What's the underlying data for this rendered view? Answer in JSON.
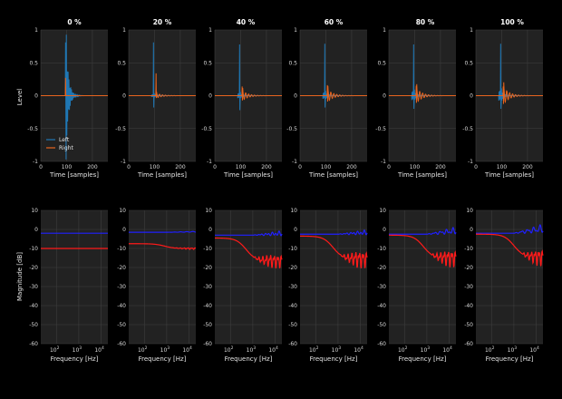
{
  "figure": {
    "background": "#000000",
    "panel_background": "#222222",
    "grid_color": "#3e3e3e"
  },
  "chart_data": [
    {
      "type": "line",
      "row": "impulse-response",
      "columns": [
        "0 %",
        "20 %",
        "40 %",
        "60 %",
        "80 %",
        "100 %"
      ],
      "xlabel": "Time [samples]",
      "ylabel": "Level",
      "xlim": [
        0,
        260
      ],
      "ylim": [
        -1,
        1
      ],
      "xticks": [
        0,
        100,
        200
      ],
      "yticks": [
        -1,
        -0.5,
        0,
        0.5,
        1
      ],
      "ytick_labels": [
        "-1",
        "-0.5",
        "0",
        "0.5",
        "1"
      ],
      "legend": {
        "placement": "bottom-left",
        "entries": [
          "Left",
          "Right"
        ]
      },
      "series_colors": {
        "Left": "#1f77b4",
        "Right": "#e8641e"
      },
      "impulse_sample": 96,
      "panels": [
        {
          "left": {
            "peak": 0.81,
            "neg": 0.0,
            "decay": 1.0,
            "ring": 0.0
          },
          "right": {
            "delay": 0,
            "peak": 0.27,
            "ring": 0.0
          }
        },
        {
          "left": {
            "peak": 0.81,
            "neg": -0.18,
            "decay": 0.04,
            "ring": 0.02
          },
          "right": {
            "delay": 10,
            "peak": 0.34,
            "ring": 0.04
          }
        },
        {
          "left": {
            "peak": 0.78,
            "neg": -0.22,
            "decay": 0.06,
            "ring": 0.04
          },
          "right": {
            "delay": 10,
            "peak": 0.14,
            "ring": 0.08
          }
        },
        {
          "left": {
            "peak": 0.79,
            "neg": -0.18,
            "decay": 0.08,
            "ring": 0.05
          },
          "right": {
            "delay": 10,
            "peak": 0.16,
            "ring": 0.1
          }
        },
        {
          "left": {
            "peak": 0.78,
            "neg": -0.2,
            "decay": 0.1,
            "ring": 0.07
          },
          "right": {
            "delay": 10,
            "peak": 0.15,
            "ring": 0.12
          }
        },
        {
          "left": {
            "peak": 0.79,
            "neg": -0.2,
            "decay": 0.12,
            "ring": 0.08
          },
          "right": {
            "delay": 10,
            "peak": 0.14,
            "ring": 0.14
          }
        }
      ]
    },
    {
      "type": "line",
      "row": "magnitude-response",
      "xlabel": "Frequency [Hz]",
      "ylabel": "Magnitude [dB]",
      "xscale": "log",
      "xlim": [
        20,
        20000
      ],
      "ylim": [
        -60,
        10
      ],
      "xticks": [
        100,
        1000,
        10000
      ],
      "xtick_labels": [
        {
          "base": "10",
          "exp": "2"
        },
        {
          "base": "10",
          "exp": "3"
        },
        {
          "base": "10",
          "exp": "4"
        }
      ],
      "yticks": [
        -60,
        -50,
        -40,
        -30,
        -20,
        -10,
        0,
        10
      ],
      "ytick_labels": [
        "-60",
        "-50",
        "-40",
        "-30",
        "-20",
        "-10",
        "0",
        "10"
      ],
      "series_colors": {
        "Left": "#2020ff",
        "Right": "#ff1a1a"
      },
      "panels": [
        {
          "left_level": -2,
          "left_rise": 0,
          "right_level": -10,
          "right_knee_hz": 0,
          "right_drop": 0,
          "right_ripple": 0
        },
        {
          "left_level": -1.5,
          "left_rise": 0.5,
          "right_level": -7.5,
          "right_knee_hz": 800,
          "right_drop": 2.5,
          "right_ripple": 0.5
        },
        {
          "left_level": -3,
          "left_rise": 1.5,
          "right_level": -4.5,
          "right_knee_hz": 500,
          "right_drop": 12,
          "right_ripple": 4
        },
        {
          "left_level": -2.5,
          "left_rise": 1.5,
          "right_level": -3.5,
          "right_knee_hz": 600,
          "right_drop": 12,
          "right_ripple": 5
        },
        {
          "left_level": -2.5,
          "left_rise": 3,
          "right_level": -3,
          "right_knee_hz": 700,
          "right_drop": 12,
          "right_ripple": 5
        },
        {
          "left_level": -2,
          "left_rise": 4,
          "right_level": -2.5,
          "right_knee_hz": 1000,
          "right_drop": 12,
          "right_ripple": 5
        }
      ]
    }
  ]
}
